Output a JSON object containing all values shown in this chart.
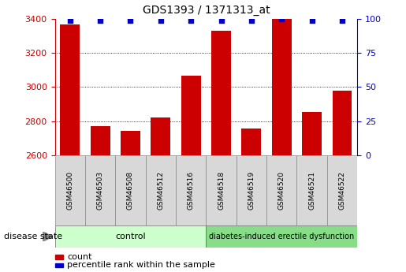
{
  "title": "GDS1393 / 1371313_at",
  "samples": [
    "GSM46500",
    "GSM46503",
    "GSM46508",
    "GSM46512",
    "GSM46516",
    "GSM46518",
    "GSM46519",
    "GSM46520",
    "GSM46521",
    "GSM46522"
  ],
  "counts": [
    3370,
    2770,
    2740,
    2820,
    3065,
    3330,
    2755,
    3400,
    2855,
    2980
  ],
  "percentiles": [
    99,
    99,
    99,
    99,
    99,
    99,
    99,
    100,
    99,
    99
  ],
  "y_min": 2600,
  "y_max": 3400,
  "y_ticks": [
    2600,
    2800,
    3000,
    3200,
    3400
  ],
  "y2_ticks": [
    0,
    25,
    50,
    75,
    100
  ],
  "bar_color": "#cc0000",
  "percentile_color": "#0000cc",
  "sample_box_color": "#d8d8d8",
  "control_color": "#ccffcc",
  "disease_color": "#88dd88",
  "tick_label_color_left": "#cc0000",
  "tick_label_color_right": "#0000cc",
  "control_label": "control",
  "disease_label": "diabetes-induced erectile dysfunction",
  "disease_state_label": "disease state",
  "legend_count_label": "count",
  "legend_percentile_label": "percentile rank within the sample",
  "bg_color": "#ffffff",
  "n_control": 5,
  "n_disease": 5
}
